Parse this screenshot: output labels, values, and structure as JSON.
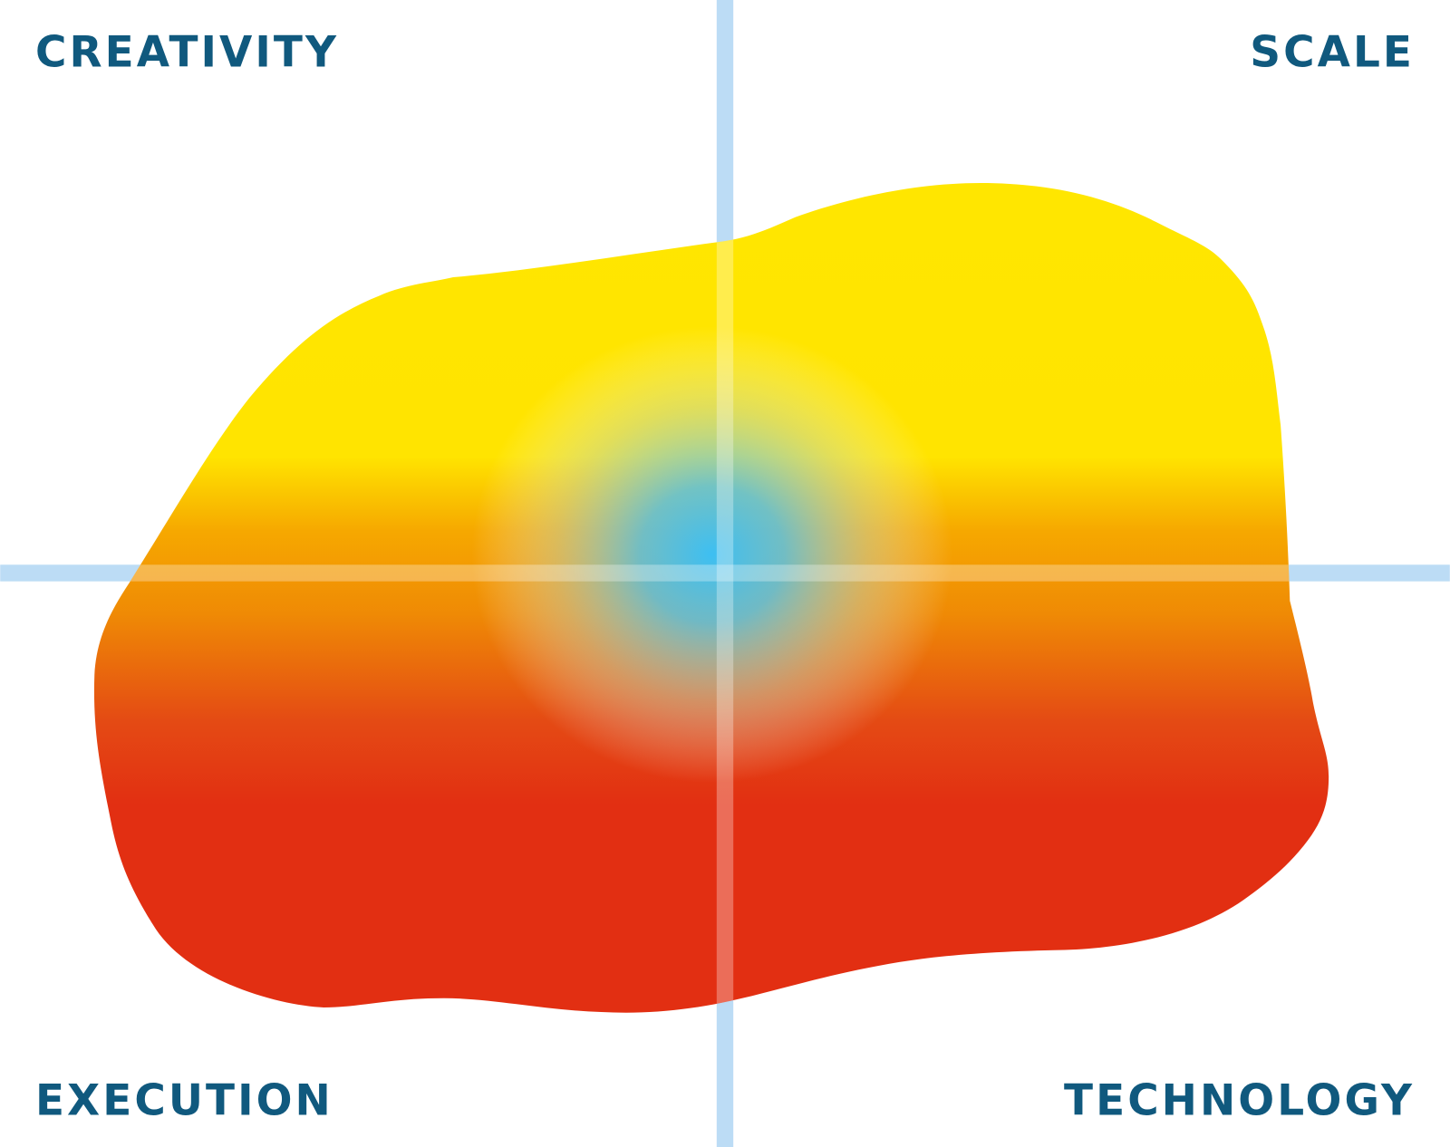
{
  "labels": {
    "top_left": "CREATIVITY",
    "top_right": "SCALE",
    "bottom_left": "EXECUTION",
    "bottom_right": "TECHNOLOGY"
  }
}
